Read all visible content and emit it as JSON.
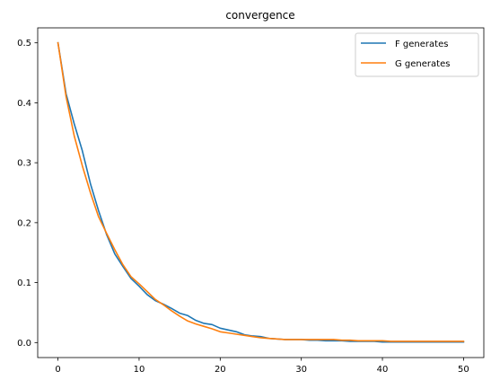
{
  "chart_data": {
    "type": "line",
    "title": "convergence",
    "xlabel": "",
    "ylabel": "",
    "xlim": [
      -2.5,
      52.5
    ],
    "ylim": [
      -0.025,
      0.525
    ],
    "xticks": [
      0,
      10,
      20,
      30,
      40,
      50
    ],
    "yticks": [
      0.0,
      0.1,
      0.2,
      0.3,
      0.4,
      0.5
    ],
    "xtick_labels": [
      "0",
      "10",
      "20",
      "30",
      "40",
      "50"
    ],
    "ytick_labels": [
      "0.0",
      "0.1",
      "0.2",
      "0.3",
      "0.4",
      "0.5"
    ],
    "grid": false,
    "legend_position": "top-right",
    "x": [
      0,
      1,
      2,
      3,
      4,
      5,
      6,
      7,
      8,
      9,
      10,
      11,
      12,
      13,
      14,
      15,
      16,
      17,
      18,
      19,
      20,
      21,
      22,
      23,
      24,
      25,
      26,
      27,
      28,
      29,
      30,
      31,
      32,
      33,
      34,
      35,
      36,
      37,
      38,
      39,
      40,
      41,
      42,
      43,
      44,
      45,
      46,
      47,
      48,
      49,
      50
    ],
    "series": [
      {
        "name": "F generates",
        "color": "#1f77b4",
        "values": [
          0.5,
          0.415,
          0.365,
          0.32,
          0.265,
          0.22,
          0.18,
          0.148,
          0.127,
          0.107,
          0.094,
          0.08,
          0.07,
          0.064,
          0.057,
          0.049,
          0.045,
          0.037,
          0.032,
          0.03,
          0.024,
          0.021,
          0.018,
          0.013,
          0.011,
          0.01,
          0.007,
          0.006,
          0.005,
          0.005,
          0.005,
          0.004,
          0.004,
          0.003,
          0.003,
          0.003,
          0.002,
          0.002,
          0.002,
          0.002,
          0.001,
          0.001,
          0.001,
          0.001,
          0.001,
          0.001,
          0.001,
          0.001,
          0.001,
          0.001,
          0.001
        ]
      },
      {
        "name": "G generates",
        "color": "#ff7f0e",
        "values": [
          0.5,
          0.41,
          0.345,
          0.295,
          0.25,
          0.21,
          0.182,
          0.155,
          0.13,
          0.11,
          0.098,
          0.085,
          0.072,
          0.063,
          0.053,
          0.044,
          0.036,
          0.031,
          0.027,
          0.023,
          0.018,
          0.016,
          0.014,
          0.012,
          0.01,
          0.008,
          0.007,
          0.006,
          0.005,
          0.005,
          0.005,
          0.005,
          0.005,
          0.005,
          0.005,
          0.004,
          0.004,
          0.003,
          0.003,
          0.003,
          0.003,
          0.002,
          0.002,
          0.002,
          0.002,
          0.002,
          0.002,
          0.002,
          0.002,
          0.002,
          0.002
        ]
      }
    ]
  }
}
